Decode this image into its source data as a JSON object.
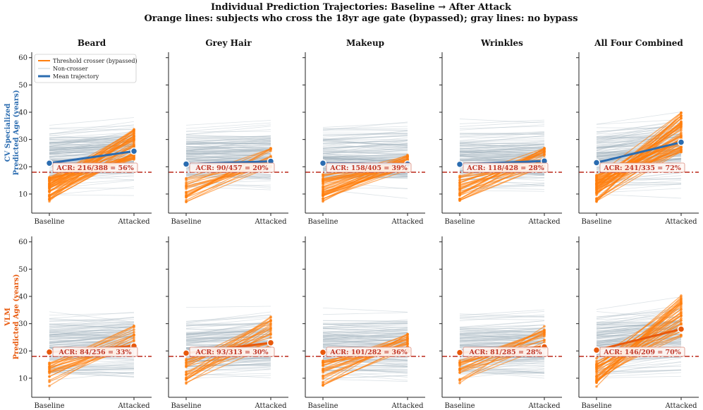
{
  "figure": {
    "title_line1": "Individual Prediction Trajectories: Baseline → After Attack",
    "title_line2": "Orange lines: subjects who cross the 18yr age gate (bypassed); gray lines: no bypass"
  },
  "colors": {
    "crosser": "#ff7f0e",
    "noncrosser": "#9fb0bb",
    "mean_cv": "#2b6cb0",
    "mean_vlm": "#e8590c",
    "threshold": "#c0392b"
  },
  "legend": {
    "crosser": "Threshold crosser (bypassed)",
    "noncrosser": "Non-crosser",
    "mean": "Mean trajectory"
  },
  "row_labels": [
    {
      "line1": "CV Specialized",
      "line2": "Predicted Age (years)",
      "color": "#2b6cb0"
    },
    {
      "line1": "VLM",
      "line2": "Predicted Age (years)",
      "color": "#e8590c"
    }
  ],
  "chart_data": {
    "type": "line",
    "x_categories": [
      "Baseline",
      "Attacked"
    ],
    "threshold_age": 18,
    "ylim": [
      3,
      62
    ],
    "yticks": [
      10,
      20,
      30,
      40,
      50,
      60
    ],
    "columns": [
      "Beard",
      "Grey Hair",
      "Makeup",
      "Wrinkles",
      "All Four Combined"
    ],
    "panels": [
      {
        "row": 0,
        "col": 0,
        "model": "CV Specialized",
        "attack": "Beard",
        "acr_label": "ACR: 216/388 = 56%",
        "mean_baseline": 21.3,
        "mean_attacked": 25.7,
        "crossers": 216,
        "eligible": 388
      },
      {
        "row": 0,
        "col": 1,
        "model": "CV Specialized",
        "attack": "Grey Hair",
        "acr_label": "ACR: 90/457 = 20%",
        "mean_baseline": 21.0,
        "mean_attacked": 22.0,
        "crossers": 90,
        "eligible": 457
      },
      {
        "row": 0,
        "col": 2,
        "model": "CV Specialized",
        "attack": "Makeup",
        "acr_label": "ACR: 158/405 = 39%",
        "mean_baseline": 21.3,
        "mean_attacked": 21.0,
        "crossers": 158,
        "eligible": 405
      },
      {
        "row": 0,
        "col": 3,
        "model": "CV Specialized",
        "attack": "Wrinkles",
        "acr_label": "ACR: 118/428 = 28%",
        "mean_baseline": 20.9,
        "mean_attacked": 22.1,
        "crossers": 118,
        "eligible": 428
      },
      {
        "row": 0,
        "col": 4,
        "model": "CV Specialized",
        "attack": "All Four Combined",
        "acr_label": "ACR: 241/335 = 72%",
        "mean_baseline": 21.5,
        "mean_attacked": 29.0,
        "crossers": 241,
        "eligible": 335
      },
      {
        "row": 1,
        "col": 0,
        "model": "VLM",
        "attack": "Beard",
        "acr_label": "ACR: 84/256 = 33%",
        "mean_baseline": 19.6,
        "mean_attacked": 21.8,
        "crossers": 84,
        "eligible": 256
      },
      {
        "row": 1,
        "col": 1,
        "model": "VLM",
        "attack": "Grey Hair",
        "acr_label": "ACR: 93/313 = 30%",
        "mean_baseline": 19.2,
        "mean_attacked": 23.0,
        "crossers": 93,
        "eligible": 313
      },
      {
        "row": 1,
        "col": 2,
        "model": "VLM",
        "attack": "Makeup",
        "acr_label": "ACR: 101/282 = 36%",
        "mean_baseline": 19.5,
        "mean_attacked": 20.1,
        "crossers": 101,
        "eligible": 282
      },
      {
        "row": 1,
        "col": 3,
        "model": "VLM",
        "attack": "Wrinkles",
        "acr_label": "ACR: 81/285 = 28%",
        "mean_baseline": 19.4,
        "mean_attacked": 21.5,
        "crossers": 81,
        "eligible": 285
      },
      {
        "row": 1,
        "col": 4,
        "model": "VLM",
        "attack": "All Four Combined",
        "acr_label": "ACR: 146/209 = 70%",
        "mean_baseline": 20.3,
        "mean_attacked": 28.0,
        "crossers": 146,
        "eligible": 209
      }
    ]
  }
}
